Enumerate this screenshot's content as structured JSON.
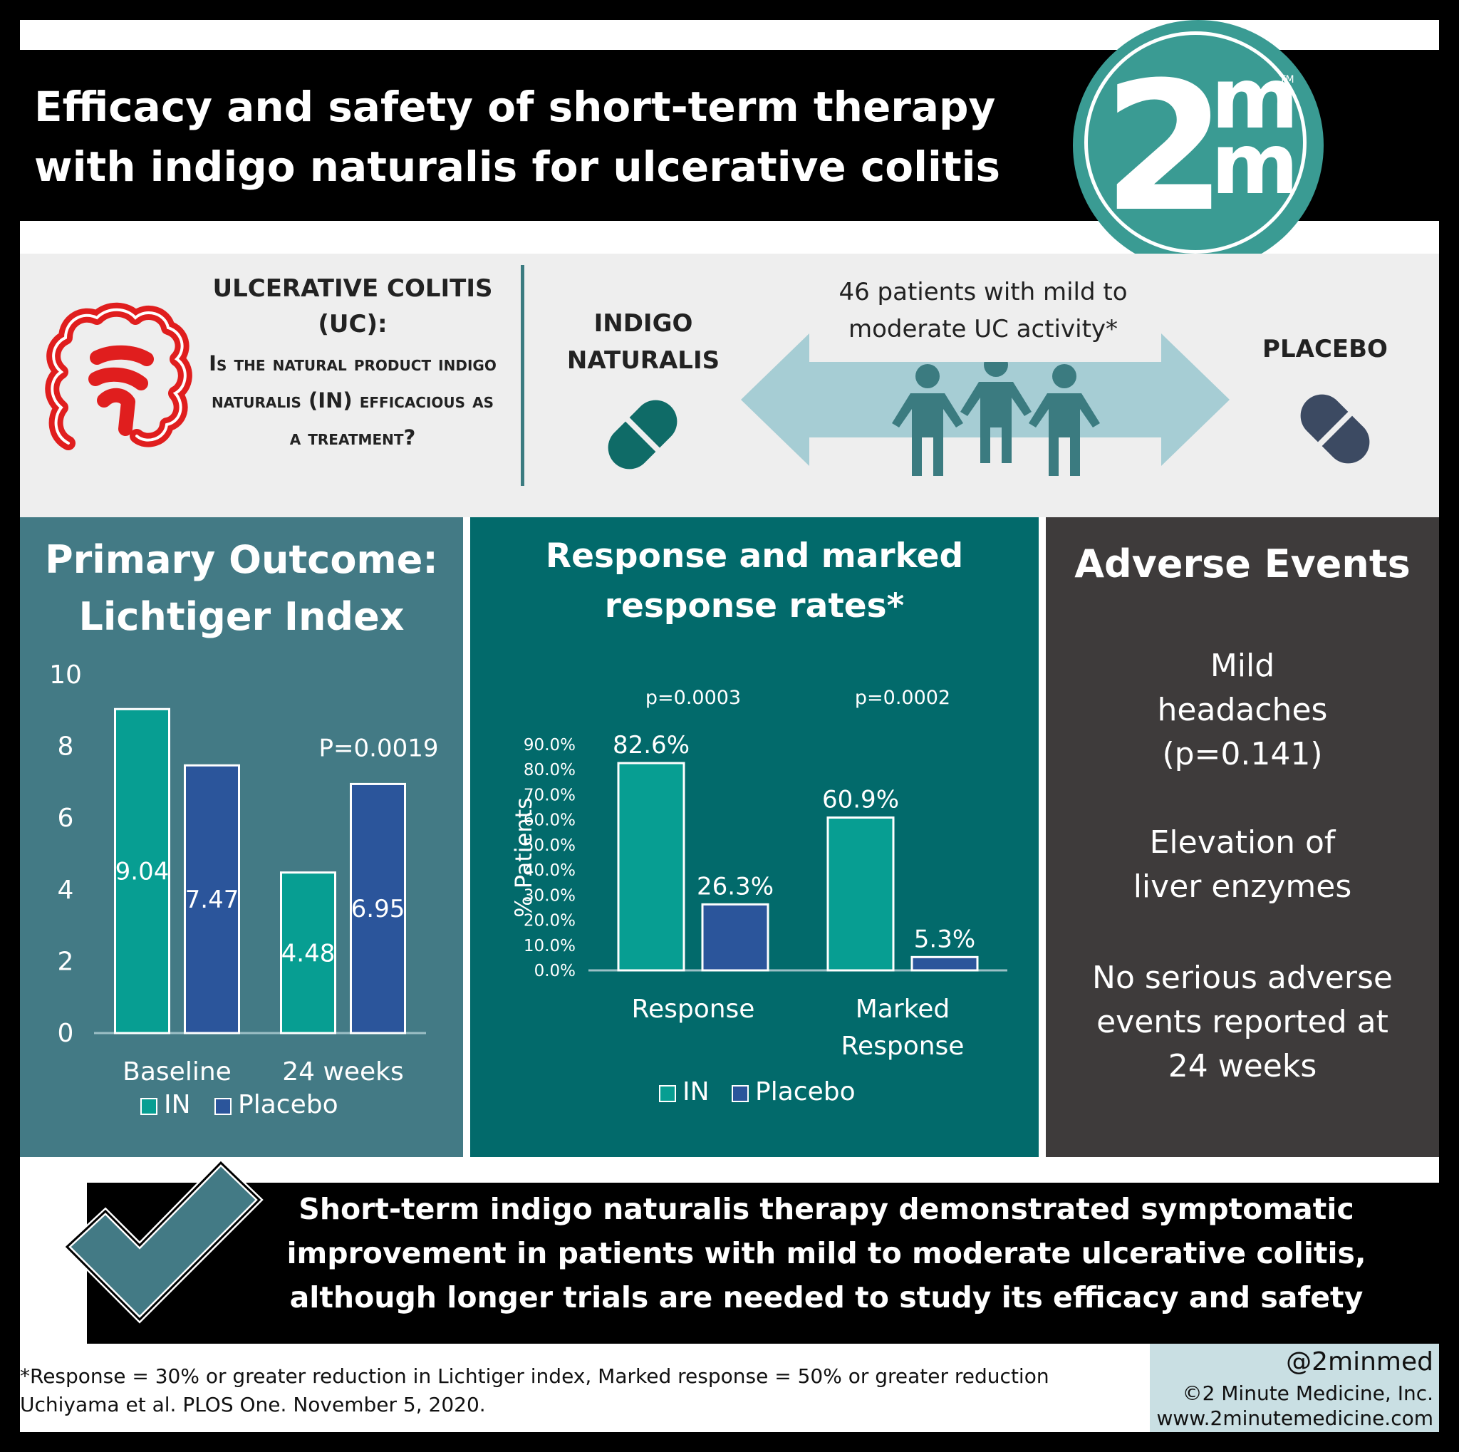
{
  "header": {
    "title": "Efficacy and safety of short-term therapy with indigo naturalis for ulcerative colitis",
    "logo": {
      "big": "2",
      "small_top": "m",
      "small_bottom": "m",
      "tm": "TM"
    }
  },
  "intro": {
    "question_heading": "ULCERATIVE COLITIS (UC):",
    "question_body": "Is the natural product indigo naturalis (IN) efficacious as a treatment?",
    "in_label": "INDIGO NATURALIS",
    "patients": "46 patients with mild to moderate UC activity*",
    "placebo_label": "PLACEBO",
    "colors": {
      "in_pill": "#0f6b67",
      "placebo_pill": "#3c4a62",
      "arrow": "#a6cdd4",
      "people": "#3b7b80",
      "colon": "#e01e1e"
    }
  },
  "primary": {
    "title_line1": "Primary Outcome:",
    "title_line2": "Lichtiger Index"
  },
  "response": {
    "title_line1": "Response and marked",
    "title_line2": "response rates*"
  },
  "adverse": {
    "title": "Adverse Events",
    "item1": "Mild headaches (p=0.141)",
    "item2": "Elevation of liver enzymes",
    "item3": "No serious adverse events reported at 24 weeks"
  },
  "conclusion": "Short-term indigo naturalis therapy demonstrated symptomatic improvement in patients with mild to moderate ulcerative colitis, although longer trials are needed to study its efficacy and safety",
  "footer": {
    "footnote": "*Response = 30% or greater reduction in Lichtiger index, Marked response = 50% or greater reduction",
    "citation": "Uchiyama et al. PLOS One. November 5, 2020.",
    "handle": "@2minmed",
    "copyright": "©2 Minute Medicine, Inc.",
    "website": "www.2minutemedicine.com"
  },
  "chart_data": [
    {
      "type": "bar",
      "categories": [
        "Baseline",
        "24 weeks"
      ],
      "series": [
        {
          "name": "IN",
          "values": [
            9.04,
            4.48
          ],
          "color": "#079e92"
        },
        {
          "name": "Placebo",
          "values": [
            7.47,
            6.95
          ],
          "color": "#2b559b"
        }
      ],
      "data_labels": [
        [
          "9.04",
          "4.48"
        ],
        [
          "7.47",
          "6.95"
        ]
      ],
      "ylim": [
        0,
        10
      ],
      "yticks": [
        0,
        2,
        4,
        6,
        8,
        10
      ],
      "annotation": "P=0.0019",
      "legend": "bottom"
    },
    {
      "type": "bar",
      "categories": [
        "Response",
        "Marked Response"
      ],
      "series": [
        {
          "name": "IN",
          "values": [
            82.6,
            60.9
          ],
          "color": "#079e92"
        },
        {
          "name": "Placebo",
          "values": [
            26.3,
            5.3
          ],
          "color": "#2b559b"
        }
      ],
      "data_labels": [
        [
          "82.6%",
          "60.9%"
        ],
        [
          "26.3%",
          "5.3%"
        ]
      ],
      "ylabel": "% Patients",
      "ylim": [
        0,
        90
      ],
      "yticks": [
        "0.0%",
        "10.0%",
        "20.0%",
        "30.0%",
        "40.0%",
        "50.0%",
        "60.0%",
        "70.0%",
        "80.0%",
        "90.0%"
      ],
      "pvalues": [
        "p=0.0003",
        "p=0.0002"
      ],
      "legend": "bottom"
    }
  ]
}
